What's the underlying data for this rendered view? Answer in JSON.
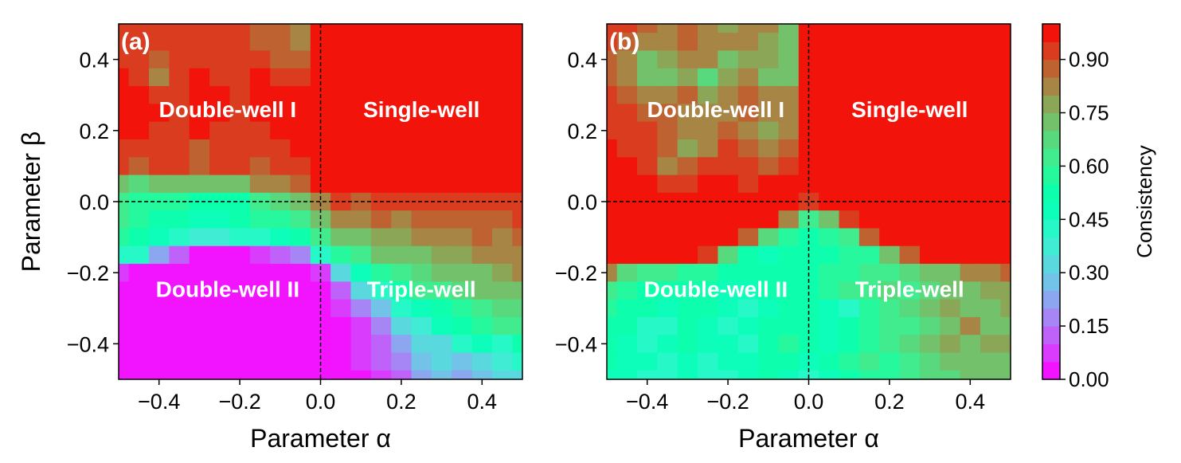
{
  "chart_data": [
    {
      "type": "heatmap",
      "panel_label": "(a)",
      "xlabel": "Parameter α",
      "ylabel": "Parameter β",
      "xlim": [
        -0.5,
        0.5
      ],
      "ylim": [
        -0.5,
        0.5
      ],
      "xticks": [
        -0.4,
        -0.2,
        0.0,
        0.2,
        0.4
      ],
      "xtick_labels": [
        "−0.4",
        "−0.2",
        "0.0",
        "0.2",
        "0.4"
      ],
      "yticks": [
        0.4,
        0.2,
        0.0,
        -0.2,
        -0.4
      ],
      "ytick_labels": [
        "0.4",
        "0.2",
        "0.0",
        "−0.2",
        "−0.4"
      ],
      "region_labels": [
        {
          "text": "Double-well I",
          "alpha": -0.23,
          "beta": 0.26
        },
        {
          "text": "Single-well",
          "alpha": 0.25,
          "beta": 0.26
        },
        {
          "text": "Double-well II",
          "alpha": -0.23,
          "beta": -0.245
        },
        {
          "text": "Triple-well",
          "alpha": 0.25,
          "beta": -0.245
        }
      ],
      "dashed_lines": {
        "alpha": 0.0,
        "beta": 0.0
      },
      "x": [
        -0.5,
        -0.45,
        -0.4,
        -0.35,
        -0.3,
        -0.25,
        -0.2,
        -0.15,
        -0.1,
        -0.05,
        0.0,
        0.05,
        0.1,
        0.15,
        0.2,
        0.25,
        0.3,
        0.35,
        0.4,
        0.45,
        0.5
      ],
      "y": [
        0.5,
        0.45,
        0.4,
        0.35,
        0.3,
        0.25,
        0.2,
        0.15,
        0.1,
        0.05,
        0.0,
        -0.05,
        -0.1,
        -0.15,
        -0.2,
        -0.25,
        -0.3,
        -0.35,
        -0.4,
        -0.45,
        -0.5
      ],
      "z": [
        [
          0.92,
          0.93,
          0.91,
          0.92,
          0.9,
          0.93,
          0.91,
          0.88,
          0.85,
          0.8,
          1.0,
          1.0,
          1.0,
          1.0,
          1.0,
          1.0,
          1.0,
          1.0,
          1.0,
          1.0,
          1.0
        ],
        [
          0.93,
          0.91,
          0.92,
          0.9,
          0.93,
          0.91,
          0.92,
          0.89,
          0.86,
          0.83,
          1.0,
          1.0,
          1.0,
          1.0,
          1.0,
          1.0,
          1.0,
          1.0,
          1.0,
          1.0,
          1.0
        ],
        [
          0.94,
          0.92,
          0.88,
          0.9,
          0.94,
          0.93,
          0.91,
          0.92,
          0.87,
          0.88,
          1.0,
          1.0,
          1.0,
          1.0,
          1.0,
          1.0,
          1.0,
          1.0,
          1.0,
          1.0,
          1.0
        ],
        [
          0.95,
          0.93,
          0.82,
          0.91,
          0.95,
          0.94,
          0.93,
          0.95,
          0.91,
          0.92,
          1.0,
          1.0,
          1.0,
          1.0,
          1.0,
          1.0,
          1.0,
          1.0,
          1.0,
          1.0,
          1.0
        ],
        [
          0.96,
          0.95,
          0.93,
          0.94,
          0.96,
          0.95,
          0.94,
          0.96,
          0.95,
          0.95,
          1.0,
          1.0,
          1.0,
          1.0,
          1.0,
          1.0,
          1.0,
          1.0,
          1.0,
          1.0,
          1.0
        ],
        [
          0.96,
          0.95,
          0.95,
          0.94,
          0.96,
          0.95,
          0.94,
          0.95,
          0.96,
          0.96,
          1.0,
          1.0,
          1.0,
          1.0,
          1.0,
          1.0,
          1.0,
          1.0,
          1.0,
          1.0,
          1.0
        ],
        [
          0.95,
          0.95,
          0.94,
          0.93,
          0.95,
          0.94,
          0.93,
          0.94,
          0.95,
          0.96,
          1.0,
          1.0,
          1.0,
          1.0,
          1.0,
          1.0,
          1.0,
          1.0,
          1.0,
          1.0,
          1.0
        ],
        [
          0.94,
          0.93,
          0.92,
          0.93,
          0.88,
          0.92,
          0.94,
          0.93,
          0.92,
          0.95,
          1.0,
          1.0,
          1.0,
          1.0,
          1.0,
          1.0,
          1.0,
          1.0,
          1.0,
          1.0,
          1.0
        ],
        [
          0.9,
          0.89,
          0.9,
          0.91,
          0.89,
          0.9,
          0.91,
          0.89,
          0.9,
          0.93,
          0.99,
          1.0,
          1.0,
          1.0,
          1.0,
          1.0,
          1.0,
          1.0,
          1.0,
          1.0,
          1.0
        ],
        [
          0.72,
          0.68,
          0.7,
          0.74,
          0.73,
          0.7,
          0.74,
          0.82,
          0.84,
          0.88,
          0.96,
          1.0,
          1.0,
          1.0,
          1.0,
          1.0,
          1.0,
          1.0,
          1.0,
          1.0,
          1.0
        ],
        [
          0.62,
          0.58,
          0.55,
          0.56,
          0.52,
          0.5,
          0.54,
          0.6,
          0.68,
          0.74,
          0.84,
          0.9,
          0.88,
          0.9,
          0.92,
          0.93,
          0.92,
          0.93,
          0.92,
          0.93,
          0.94
        ],
        [
          0.6,
          0.55,
          0.53,
          0.5,
          0.48,
          0.47,
          0.5,
          0.55,
          0.58,
          0.62,
          0.74,
          0.8,
          0.82,
          0.86,
          0.84,
          0.88,
          0.87,
          0.85,
          0.89,
          0.88,
          0.9
        ],
        [
          0.56,
          0.5,
          0.45,
          0.42,
          0.38,
          0.38,
          0.4,
          0.42,
          0.48,
          0.52,
          0.6,
          0.7,
          0.74,
          0.78,
          0.76,
          0.84,
          0.82,
          0.8,
          0.86,
          0.84,
          0.86
        ],
        [
          0.44,
          0.4,
          0.2,
          0.1,
          0.04,
          0.02,
          0.03,
          0.06,
          0.1,
          0.18,
          0.4,
          0.58,
          0.64,
          0.7,
          0.72,
          0.74,
          0.78,
          0.76,
          0.82,
          0.8,
          0.84
        ],
        [
          0.08,
          0.03,
          0.0,
          0.0,
          0.0,
          0.0,
          0.0,
          0.0,
          0.0,
          0.0,
          0.08,
          0.32,
          0.48,
          0.56,
          0.62,
          0.66,
          0.7,
          0.72,
          0.74,
          0.76,
          0.8
        ],
        [
          0.0,
          0.0,
          0.0,
          0.0,
          0.0,
          0.0,
          0.0,
          0.0,
          0.0,
          0.0,
          0.02,
          0.12,
          0.3,
          0.42,
          0.52,
          0.6,
          0.62,
          0.66,
          0.7,
          0.72,
          0.74
        ],
        [
          0.0,
          0.0,
          0.0,
          0.0,
          0.0,
          0.0,
          0.0,
          0.0,
          0.0,
          0.0,
          0.0,
          0.05,
          0.16,
          0.28,
          0.4,
          0.48,
          0.54,
          0.58,
          0.62,
          0.66,
          0.68
        ],
        [
          0.0,
          0.0,
          0.0,
          0.0,
          0.0,
          0.0,
          0.0,
          0.0,
          0.0,
          0.0,
          0.0,
          0.02,
          0.08,
          0.18,
          0.3,
          0.38,
          0.46,
          0.5,
          0.56,
          0.6,
          0.62
        ],
        [
          0.0,
          0.0,
          0.0,
          0.0,
          0.0,
          0.0,
          0.0,
          0.0,
          0.0,
          0.0,
          0.0,
          0.02,
          0.06,
          0.12,
          0.22,
          0.3,
          0.32,
          0.42,
          0.46,
          0.4,
          0.52
        ],
        [
          0.0,
          0.0,
          0.0,
          0.0,
          0.0,
          0.0,
          0.0,
          0.0,
          0.0,
          0.0,
          0.0,
          0.03,
          0.05,
          0.1,
          0.16,
          0.26,
          0.34,
          0.28,
          0.3,
          0.36,
          0.4
        ],
        [
          0.0,
          0.0,
          0.0,
          0.0,
          0.0,
          0.0,
          0.0,
          0.0,
          0.0,
          0.0,
          0.0,
          0.02,
          0.04,
          0.08,
          0.14,
          0.22,
          0.28,
          0.24,
          0.26,
          0.3,
          0.34
        ]
      ]
    },
    {
      "type": "heatmap",
      "panel_label": "(b)",
      "xlabel": "Parameter α",
      "ylabel": "",
      "xlim": [
        -0.5,
        0.5
      ],
      "ylim": [
        -0.5,
        0.5
      ],
      "xticks": [
        -0.4,
        -0.2,
        0.0,
        0.2,
        0.4
      ],
      "xtick_labels": [
        "−0.4",
        "−0.2",
        "0.0",
        "0.2",
        "0.4"
      ],
      "yticks": [
        0.4,
        0.2,
        0.0,
        -0.2,
        -0.4
      ],
      "ytick_labels": [
        "0.4",
        "0.2",
        "0.0",
        "−0.2",
        "−0.4"
      ],
      "region_labels": [
        {
          "text": "Double-well I",
          "alpha": -0.23,
          "beta": 0.26
        },
        {
          "text": "Single-well",
          "alpha": 0.25,
          "beta": 0.26
        },
        {
          "text": "Double-well II",
          "alpha": -0.23,
          "beta": -0.245
        },
        {
          "text": "Triple-well",
          "alpha": 0.25,
          "beta": -0.245
        }
      ],
      "dashed_lines": {
        "alpha": 0.0,
        "beta": 0.0
      },
      "x": [
        -0.5,
        -0.45,
        -0.4,
        -0.35,
        -0.3,
        -0.25,
        -0.2,
        -0.15,
        -0.1,
        -0.05,
        0.0,
        0.05,
        0.1,
        0.15,
        0.2,
        0.25,
        0.3,
        0.35,
        0.4,
        0.45,
        0.5
      ],
      "y": [
        0.5,
        0.45,
        0.4,
        0.35,
        0.3,
        0.25,
        0.2,
        0.15,
        0.1,
        0.05,
        0.0,
        -0.05,
        -0.1,
        -0.15,
        -0.2,
        -0.25,
        -0.3,
        -0.35,
        -0.4,
        -0.45,
        -0.5
      ],
      "z": [
        [
          0.92,
          0.9,
          0.86,
          0.84,
          0.86,
          0.8,
          0.78,
          0.82,
          0.8,
          0.72,
          1.0,
          1.0,
          1.0,
          1.0,
          1.0,
          1.0,
          1.0,
          1.0,
          1.0,
          1.0,
          1.0
        ],
        [
          0.9,
          0.86,
          0.8,
          0.82,
          0.88,
          0.84,
          0.8,
          0.82,
          0.78,
          0.74,
          1.0,
          1.0,
          1.0,
          1.0,
          1.0,
          1.0,
          1.0,
          1.0,
          1.0,
          1.0,
          1.0
        ],
        [
          0.86,
          0.82,
          0.72,
          0.76,
          0.84,
          0.82,
          0.74,
          0.78,
          0.76,
          0.7,
          1.0,
          1.0,
          1.0,
          1.0,
          1.0,
          1.0,
          1.0,
          1.0,
          1.0,
          1.0,
          1.0
        ],
        [
          0.88,
          0.8,
          0.7,
          0.74,
          0.76,
          0.68,
          0.76,
          0.8,
          0.74,
          0.72,
          1.0,
          1.0,
          1.0,
          1.0,
          1.0,
          1.0,
          1.0,
          1.0,
          1.0,
          1.0,
          1.0
        ],
        [
          0.9,
          0.86,
          0.82,
          0.84,
          0.86,
          0.78,
          0.84,
          0.88,
          0.82,
          0.8,
          1.0,
          1.0,
          1.0,
          1.0,
          1.0,
          1.0,
          1.0,
          1.0,
          1.0,
          1.0,
          1.0
        ],
        [
          0.92,
          0.9,
          0.88,
          0.86,
          0.84,
          0.8,
          0.84,
          0.86,
          0.8,
          0.82,
          1.0,
          1.0,
          1.0,
          1.0,
          1.0,
          1.0,
          1.0,
          1.0,
          1.0,
          1.0,
          1.0
        ],
        [
          0.94,
          0.92,
          0.9,
          0.86,
          0.8,
          0.82,
          0.86,
          0.84,
          0.78,
          0.84,
          1.0,
          1.0,
          1.0,
          1.0,
          1.0,
          1.0,
          1.0,
          1.0,
          1.0,
          1.0,
          1.0
        ],
        [
          0.96,
          0.94,
          0.92,
          0.86,
          0.78,
          0.84,
          0.9,
          0.86,
          0.84,
          0.88,
          1.0,
          1.0,
          1.0,
          1.0,
          1.0,
          1.0,
          1.0,
          1.0,
          1.0,
          1.0,
          1.0
        ],
        [
          0.98,
          0.96,
          0.9,
          0.82,
          0.86,
          0.92,
          0.94,
          0.9,
          0.88,
          0.92,
          1.0,
          1.0,
          1.0,
          1.0,
          1.0,
          1.0,
          1.0,
          1.0,
          1.0,
          1.0,
          1.0
        ],
        [
          1.0,
          0.98,
          0.96,
          0.92,
          0.94,
          0.96,
          0.96,
          0.94,
          0.95,
          0.96,
          1.0,
          1.0,
          1.0,
          1.0,
          1.0,
          1.0,
          1.0,
          1.0,
          1.0,
          1.0,
          1.0
        ],
        [
          1.0,
          1.0,
          1.0,
          1.0,
          1.0,
          1.0,
          1.0,
          1.0,
          1.0,
          0.98,
          0.92,
          0.98,
          1.0,
          1.0,
          1.0,
          1.0,
          1.0,
          1.0,
          1.0,
          1.0,
          1.0
        ],
        [
          1.0,
          1.0,
          1.0,
          1.0,
          1.0,
          1.0,
          1.0,
          1.0,
          0.96,
          0.8,
          0.62,
          0.74,
          0.94,
          1.0,
          1.0,
          1.0,
          1.0,
          1.0,
          1.0,
          1.0,
          1.0
        ],
        [
          1.0,
          1.0,
          1.0,
          1.0,
          1.0,
          1.0,
          0.98,
          0.88,
          0.66,
          0.56,
          0.52,
          0.56,
          0.62,
          0.86,
          0.98,
          1.0,
          1.0,
          1.0,
          1.0,
          1.0,
          1.0
        ],
        [
          1.0,
          1.0,
          1.0,
          1.0,
          0.98,
          0.92,
          0.68,
          0.54,
          0.48,
          0.5,
          0.5,
          0.54,
          0.56,
          0.58,
          0.7,
          0.88,
          0.96,
          1.0,
          1.0,
          1.0,
          1.0
        ],
        [
          0.8,
          0.68,
          0.62,
          0.6,
          0.58,
          0.56,
          0.52,
          0.5,
          0.52,
          0.54,
          0.54,
          0.56,
          0.58,
          0.6,
          0.62,
          0.66,
          0.7,
          0.74,
          0.8,
          0.84,
          0.86
        ],
        [
          0.62,
          0.58,
          0.54,
          0.52,
          0.5,
          0.52,
          0.48,
          0.46,
          0.5,
          0.54,
          0.52,
          0.56,
          0.6,
          0.62,
          0.66,
          0.64,
          0.68,
          0.72,
          0.74,
          0.76,
          0.78
        ],
        [
          0.56,
          0.54,
          0.5,
          0.48,
          0.52,
          0.5,
          0.46,
          0.44,
          0.48,
          0.52,
          0.5,
          0.48,
          0.42,
          0.58,
          0.62,
          0.66,
          0.7,
          0.76,
          0.72,
          0.74,
          0.76
        ],
        [
          0.54,
          0.5,
          0.4,
          0.44,
          0.5,
          0.48,
          0.44,
          0.46,
          0.5,
          0.54,
          0.52,
          0.46,
          0.5,
          0.56,
          0.64,
          0.62,
          0.68,
          0.74,
          0.8,
          0.72,
          0.74
        ],
        [
          0.52,
          0.48,
          0.44,
          0.46,
          0.5,
          0.46,
          0.48,
          0.44,
          0.52,
          0.56,
          0.5,
          0.48,
          0.54,
          0.58,
          0.62,
          0.66,
          0.7,
          0.76,
          0.74,
          0.78,
          0.76
        ],
        [
          0.5,
          0.46,
          0.48,
          0.44,
          0.48,
          0.44,
          0.46,
          0.48,
          0.54,
          0.52,
          0.46,
          0.5,
          0.56,
          0.62,
          0.58,
          0.64,
          0.68,
          0.72,
          0.7,
          0.74,
          0.72
        ],
        [
          0.48,
          0.46,
          0.44,
          0.42,
          0.46,
          0.42,
          0.44,
          0.46,
          0.5,
          0.48,
          0.4,
          0.48,
          0.54,
          0.58,
          0.56,
          0.62,
          0.66,
          0.68,
          0.7,
          0.7,
          0.72
        ]
      ]
    }
  ],
  "colorbar": {
    "label": "Consistency",
    "min": 0.0,
    "max": 1.0,
    "levels": 20,
    "ticks": [
      0.0,
      0.15,
      0.3,
      0.45,
      0.6,
      0.75,
      0.9
    ],
    "tick_labels": [
      "0.00",
      "0.15",
      "0.30",
      "0.45",
      "0.60",
      "0.75",
      "0.90"
    ],
    "colormap": "rainbow"
  }
}
